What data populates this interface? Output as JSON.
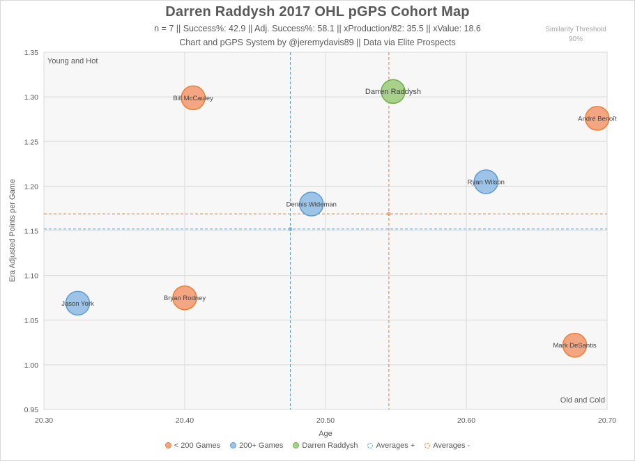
{
  "title": "Darren Raddysh 2017 OHL pGPS Cohort Map",
  "subtitle_stats": "n = 7 || Success%: 42.9 || Adj. Success%: 58.1 || xProduction/82: 35.5 || xValue: 18.6",
  "subtitle_credit": "Chart and pGPS System by @jeremydavis89 || Data via Elite Prospects",
  "similarity_label": "Similarity Threshold",
  "similarity_value": "90%",
  "quadrant_top_left": "Young and Hot",
  "quadrant_bottom_right": "Old and Cold",
  "colors": {
    "under200": "#f4a582",
    "under200_stroke": "#ed7d31",
    "over200": "#9dc3e6",
    "over200_stroke": "#5b9bd5",
    "subject": "#a9d18e",
    "subject_stroke": "#70ad47",
    "avg_plus": "#5b9bd5",
    "avg_minus": "#ed7d31"
  },
  "legend": [
    {
      "label": "< 200 Games",
      "key": "under200",
      "style": "filled"
    },
    {
      "label": "200+ Games",
      "key": "over200",
      "style": "filled"
    },
    {
      "label": "Darren Raddysh",
      "key": "subject",
      "style": "filled"
    },
    {
      "label": "Averages +",
      "key": "avg_plus",
      "style": "dashed"
    },
    {
      "label": "Averages -",
      "key": "avg_minus",
      "style": "dashed"
    }
  ],
  "chart_data": {
    "type": "scatter",
    "xlabel": "Age",
    "ylabel": "Era Adjusted Points per Game",
    "xlim": [
      20.3,
      20.7
    ],
    "ylim": [
      0.95,
      1.35
    ],
    "xticks": [
      "20.30",
      "20.40",
      "20.50",
      "20.60",
      "20.70"
    ],
    "yticks": [
      "0.95",
      "1.00",
      "1.05",
      "1.10",
      "1.15",
      "1.20",
      "1.25",
      "1.30",
      "1.35"
    ],
    "grid": true,
    "legend_position": "bottom",
    "points": [
      {
        "name": "Bill McCauley",
        "x": 20.406,
        "y": 1.299,
        "group": "under200"
      },
      {
        "name": "Darren Raddysh",
        "x": 20.548,
        "y": 1.306,
        "group": "subject"
      },
      {
        "name": "André Benoît",
        "x": 20.693,
        "y": 1.276,
        "group": "under200"
      },
      {
        "name": "Ryan Wilson",
        "x": 20.614,
        "y": 1.205,
        "group": "over200"
      },
      {
        "name": "Dennis Wideman",
        "x": 20.49,
        "y": 1.18,
        "group": "over200"
      },
      {
        "name": "Jason York",
        "x": 20.324,
        "y": 1.069,
        "group": "over200"
      },
      {
        "name": "Bryan Rodney",
        "x": 20.4,
        "y": 1.075,
        "group": "under200"
      },
      {
        "name": "Mark DeSantis",
        "x": 20.677,
        "y": 1.022,
        "group": "under200"
      }
    ],
    "averages_plus": {
      "x": 20.475,
      "y": 1.152
    },
    "averages_minus": {
      "x": 20.545,
      "y": 1.169
    }
  }
}
